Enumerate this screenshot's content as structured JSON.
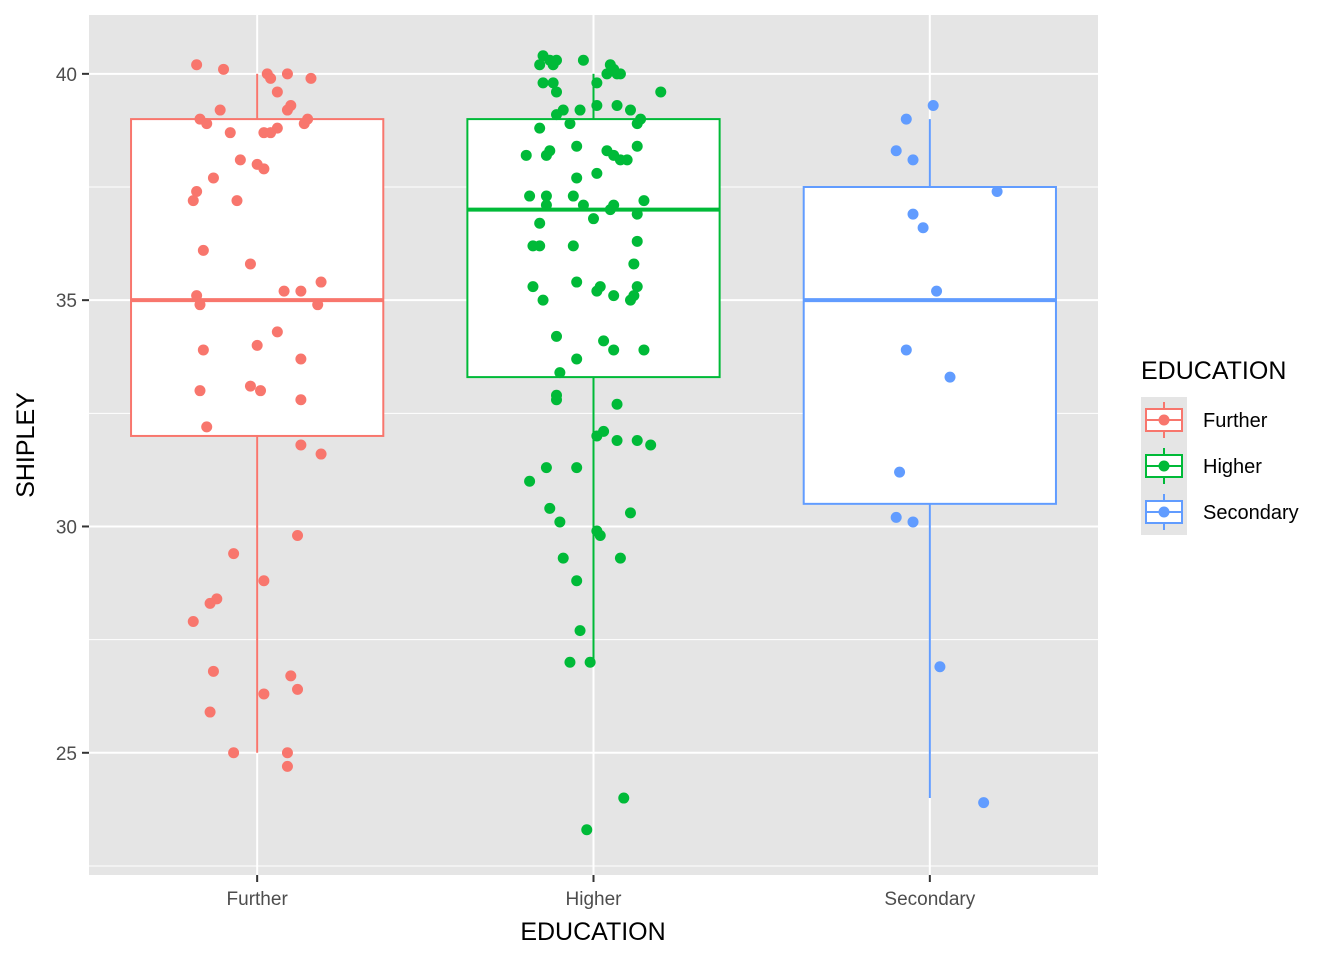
{
  "chart_data": {
    "type": "boxplot",
    "xlabel": "EDUCATION",
    "ylabel": "SHIPLEY",
    "categories": [
      "Further",
      "Higher",
      "Secondary"
    ],
    "ylim": [
      22.3,
      41.3
    ],
    "yticks": [
      25,
      30,
      35,
      40
    ],
    "grid": true,
    "legend": {
      "title": "EDUCATION",
      "position": "right",
      "entries": [
        "Further",
        "Higher",
        "Secondary"
      ]
    },
    "colors": {
      "Further": "#f8766d",
      "Higher": "#00ba38",
      "Secondary": "#619cff",
      "panel": "#e5e5e5",
      "grid": "#ffffff"
    },
    "series": [
      {
        "name": "Further",
        "box": {
          "whisker_low": 25,
          "q1": 32,
          "median": 35,
          "q3": 39,
          "whisker_high": 40
        },
        "points": [
          [
            -0.18,
            40.2
          ],
          [
            -0.1,
            40.1
          ],
          [
            0.03,
            40.0
          ],
          [
            0.04,
            39.9
          ],
          [
            0.09,
            40.0
          ],
          [
            0.16,
            39.9
          ],
          [
            0.06,
            39.6
          ],
          [
            0.1,
            39.3
          ],
          [
            0.09,
            39.2
          ],
          [
            -0.11,
            39.2
          ],
          [
            -0.17,
            39.0
          ],
          [
            -0.15,
            38.9
          ],
          [
            0.15,
            39.0
          ],
          [
            0.14,
            38.9
          ],
          [
            -0.08,
            38.7
          ],
          [
            0.02,
            38.7
          ],
          [
            0.04,
            38.7
          ],
          [
            0.06,
            38.8
          ],
          [
            -0.05,
            38.1
          ],
          [
            0.0,
            38.0
          ],
          [
            0.02,
            37.9
          ],
          [
            -0.13,
            37.7
          ],
          [
            -0.18,
            37.4
          ],
          [
            -0.19,
            37.2
          ],
          [
            -0.06,
            37.2
          ],
          [
            -0.16,
            36.1
          ],
          [
            -0.02,
            35.8
          ],
          [
            0.08,
            35.2
          ],
          [
            0.13,
            35.2
          ],
          [
            0.19,
            35.4
          ],
          [
            -0.18,
            35.1
          ],
          [
            -0.17,
            34.9
          ],
          [
            0.18,
            34.9
          ],
          [
            0.06,
            34.3
          ],
          [
            0.0,
            34.0
          ],
          [
            -0.16,
            33.9
          ],
          [
            0.13,
            33.7
          ],
          [
            -0.02,
            33.1
          ],
          [
            0.01,
            33.0
          ],
          [
            -0.17,
            33.0
          ],
          [
            0.13,
            32.8
          ],
          [
            -0.15,
            32.2
          ],
          [
            0.13,
            31.8
          ],
          [
            0.19,
            31.6
          ],
          [
            0.12,
            29.8
          ],
          [
            -0.07,
            29.4
          ],
          [
            0.02,
            28.8
          ],
          [
            -0.12,
            28.4
          ],
          [
            -0.14,
            28.3
          ],
          [
            -0.19,
            27.9
          ],
          [
            -0.13,
            26.8
          ],
          [
            0.1,
            26.7
          ],
          [
            0.12,
            26.4
          ],
          [
            0.02,
            26.3
          ],
          [
            -0.14,
            25.9
          ],
          [
            -0.07,
            25.0
          ],
          [
            0.09,
            25.0
          ],
          [
            0.09,
            24.7
          ]
        ]
      },
      {
        "name": "Higher",
        "box": {
          "whisker_low": 27,
          "q1": 33.3,
          "median": 37,
          "q3": 39,
          "whisker_high": 40
        },
        "points": [
          [
            -0.15,
            40.4
          ],
          [
            -0.13,
            40.3
          ],
          [
            -0.12,
            40.2
          ],
          [
            -0.16,
            40.2
          ],
          [
            -0.11,
            40.3
          ],
          [
            -0.03,
            40.3
          ],
          [
            0.05,
            40.2
          ],
          [
            0.06,
            40.1
          ],
          [
            0.04,
            40.0
          ],
          [
            0.07,
            40.0
          ],
          [
            0.08,
            40.0
          ],
          [
            0.01,
            39.8
          ],
          [
            -0.15,
            39.8
          ],
          [
            -0.12,
            39.8
          ],
          [
            -0.11,
            39.6
          ],
          [
            0.2,
            39.6
          ],
          [
            -0.09,
            39.2
          ],
          [
            -0.04,
            39.2
          ],
          [
            0.01,
            39.3
          ],
          [
            0.07,
            39.3
          ],
          [
            0.11,
            39.2
          ],
          [
            0.14,
            39.0
          ],
          [
            0.13,
            38.9
          ],
          [
            -0.11,
            39.1
          ],
          [
            -0.07,
            38.9
          ],
          [
            -0.16,
            38.8
          ],
          [
            0.13,
            38.4
          ],
          [
            -0.13,
            38.3
          ],
          [
            -0.05,
            38.4
          ],
          [
            0.04,
            38.3
          ],
          [
            -0.2,
            38.2
          ],
          [
            -0.14,
            38.2
          ],
          [
            0.06,
            38.2
          ],
          [
            0.08,
            38.1
          ],
          [
            0.1,
            38.1
          ],
          [
            0.01,
            37.8
          ],
          [
            -0.05,
            37.7
          ],
          [
            -0.19,
            37.3
          ],
          [
            -0.14,
            37.3
          ],
          [
            -0.06,
            37.3
          ],
          [
            -0.03,
            37.1
          ],
          [
            0.06,
            37.1
          ],
          [
            0.15,
            37.2
          ],
          [
            -0.14,
            37.1
          ],
          [
            0.05,
            37.0
          ],
          [
            0.0,
            36.8
          ],
          [
            -0.16,
            36.7
          ],
          [
            0.13,
            36.9
          ],
          [
            0.13,
            36.3
          ],
          [
            -0.18,
            36.2
          ],
          [
            -0.16,
            36.2
          ],
          [
            -0.06,
            36.2
          ],
          [
            0.12,
            35.8
          ],
          [
            0.13,
            35.3
          ],
          [
            0.02,
            35.3
          ],
          [
            -0.05,
            35.4
          ],
          [
            -0.18,
            35.3
          ],
          [
            0.01,
            35.2
          ],
          [
            0.06,
            35.1
          ],
          [
            0.11,
            35.0
          ],
          [
            -0.15,
            35.0
          ],
          [
            0.12,
            35.1
          ],
          [
            -0.11,
            34.2
          ],
          [
            0.03,
            34.1
          ],
          [
            0.06,
            33.9
          ],
          [
            0.15,
            33.9
          ],
          [
            -0.05,
            33.7
          ],
          [
            -0.1,
            33.4
          ],
          [
            -0.11,
            32.9
          ],
          [
            -0.11,
            32.8
          ],
          [
            0.07,
            32.7
          ],
          [
            0.03,
            32.1
          ],
          [
            0.01,
            32.0
          ],
          [
            0.07,
            31.9
          ],
          [
            0.13,
            31.9
          ],
          [
            0.17,
            31.8
          ],
          [
            -0.14,
            31.3
          ],
          [
            -0.05,
            31.3
          ],
          [
            -0.19,
            31.0
          ],
          [
            0.11,
            30.3
          ],
          [
            -0.13,
            30.4
          ],
          [
            -0.1,
            30.1
          ],
          [
            0.02,
            29.8
          ],
          [
            0.01,
            29.9
          ],
          [
            -0.09,
            29.3
          ],
          [
            0.08,
            29.3
          ],
          [
            -0.05,
            28.8
          ],
          [
            -0.04,
            27.7
          ],
          [
            -0.07,
            27.0
          ],
          [
            -0.01,
            27.0
          ],
          [
            0.09,
            24.0
          ],
          [
            -0.02,
            23.3
          ]
        ]
      },
      {
        "name": "Secondary",
        "box": {
          "whisker_low": 24,
          "q1": 30.5,
          "median": 35,
          "q3": 37.5,
          "whisker_high": 39
        },
        "points": [
          [
            0.01,
            39.3
          ],
          [
            -0.07,
            39.0
          ],
          [
            -0.1,
            38.3
          ],
          [
            -0.05,
            38.1
          ],
          [
            0.2,
            37.4
          ],
          [
            -0.05,
            36.9
          ],
          [
            -0.02,
            36.6
          ],
          [
            0.02,
            35.2
          ],
          [
            -0.07,
            33.9
          ],
          [
            0.06,
            33.3
          ],
          [
            -0.09,
            31.2
          ],
          [
            -0.1,
            30.2
          ],
          [
            -0.05,
            30.1
          ],
          [
            0.03,
            26.9
          ],
          [
            0.16,
            23.9
          ]
        ]
      }
    ]
  }
}
